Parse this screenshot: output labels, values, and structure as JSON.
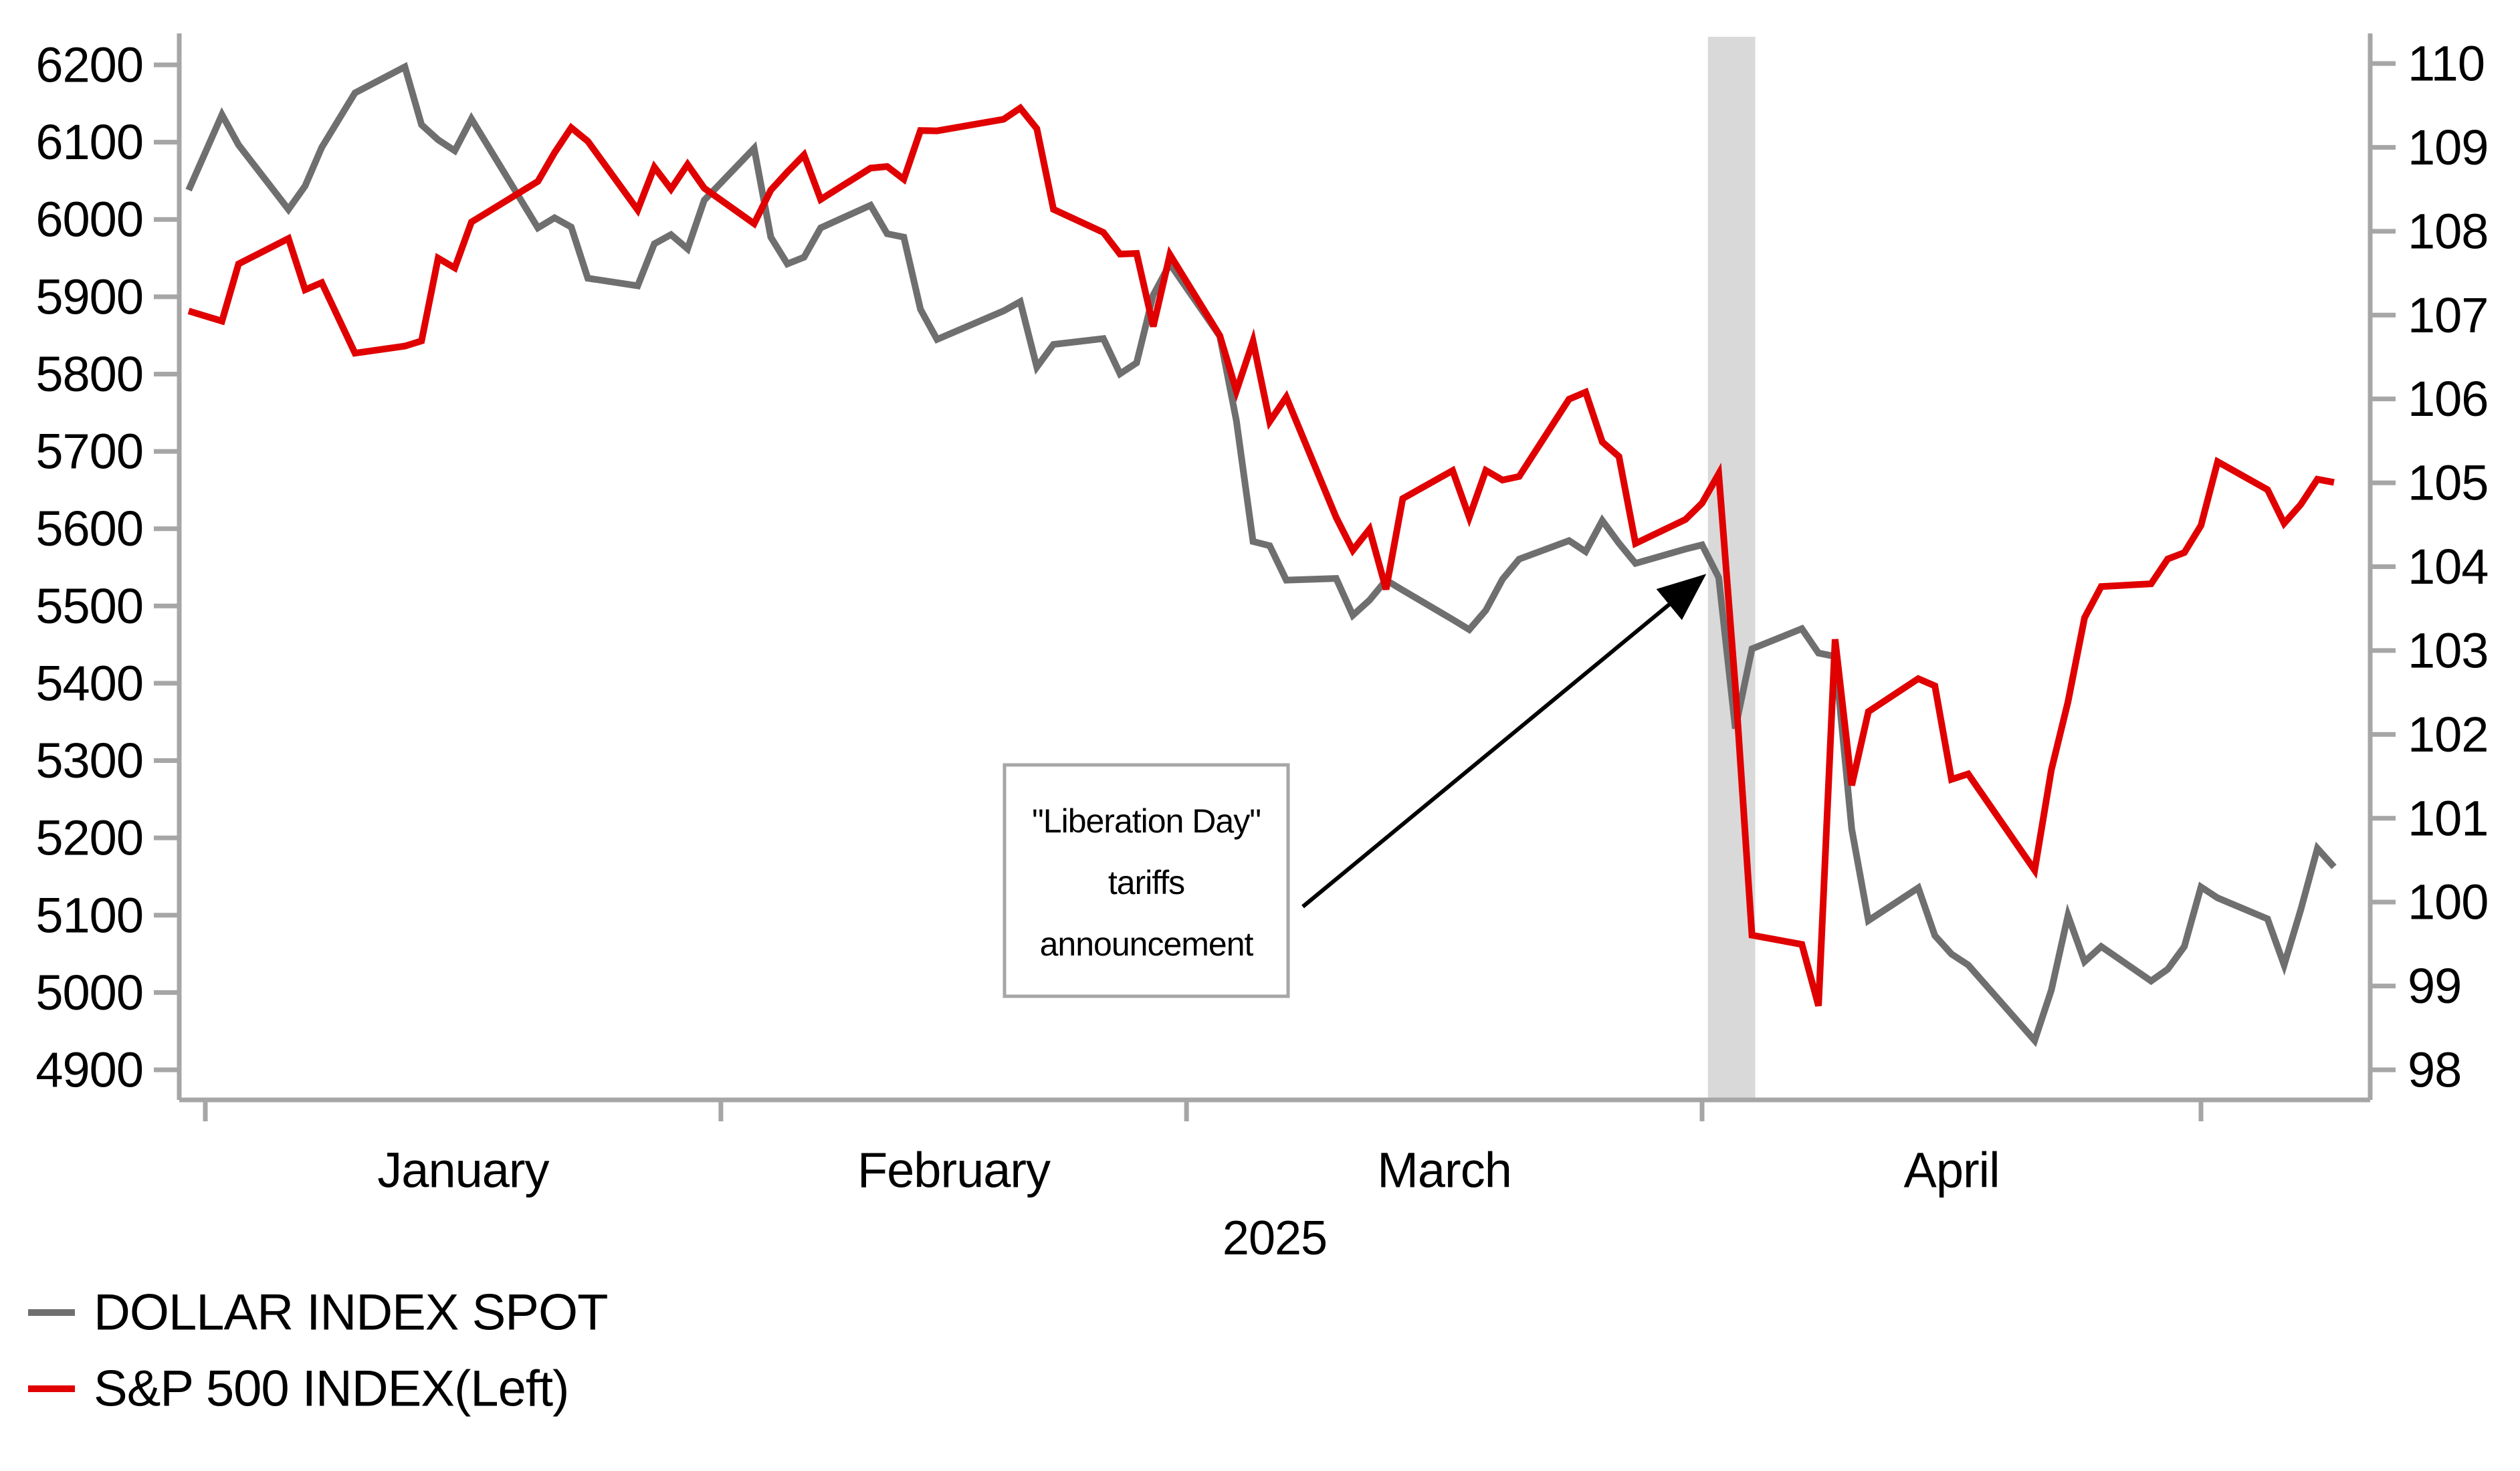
{
  "chart_data": {
    "type": "line",
    "title": "",
    "year": "2025",
    "x": [
      "2024-12-31",
      "2025-01-02",
      "2025-01-03",
      "2025-01-06",
      "2025-01-07",
      "2025-01-08",
      "2025-01-10",
      "2025-01-13",
      "2025-01-14",
      "2025-01-15",
      "2025-01-16",
      "2025-01-17",
      "2025-01-21",
      "2025-01-22",
      "2025-01-23",
      "2025-01-24",
      "2025-01-27",
      "2025-01-28",
      "2025-01-29",
      "2025-01-30",
      "2025-01-31",
      "2025-02-03",
      "2025-02-04",
      "2025-02-05",
      "2025-02-06",
      "2025-02-07",
      "2025-02-10",
      "2025-02-11",
      "2025-02-12",
      "2025-02-13",
      "2025-02-14",
      "2025-02-18",
      "2025-02-19",
      "2025-02-20",
      "2025-02-21",
      "2025-02-24",
      "2025-02-25",
      "2025-02-26",
      "2025-02-27",
      "2025-02-28",
      "2025-03-03",
      "2025-03-04",
      "2025-03-05",
      "2025-03-06",
      "2025-03-07",
      "2025-03-10",
      "2025-03-11",
      "2025-03-12",
      "2025-03-13",
      "2025-03-14",
      "2025-03-17",
      "2025-03-18",
      "2025-03-19",
      "2025-03-20",
      "2025-03-21",
      "2025-03-24",
      "2025-03-25",
      "2025-03-26",
      "2025-03-27",
      "2025-03-28",
      "2025-03-31",
      "2025-04-01",
      "2025-04-02",
      "2025-04-03",
      "2025-04-04",
      "2025-04-07",
      "2025-04-08",
      "2025-04-09",
      "2025-04-10",
      "2025-04-11",
      "2025-04-14",
      "2025-04-15",
      "2025-04-16",
      "2025-04-17",
      "2025-04-21",
      "2025-04-22",
      "2025-04-23",
      "2025-04-24",
      "2025-04-25",
      "2025-04-28",
      "2025-04-29",
      "2025-04-30",
      "2025-05-01",
      "2025-05-02",
      "2025-05-05",
      "2025-05-06",
      "2025-05-07",
      "2025-05-08",
      "2025-05-09"
    ],
    "series": [
      {
        "name": "DOLLAR INDEX SPOT",
        "axis": "right",
        "color": "#6f6f6f",
        "values": [
          108.49,
          109.39,
          109.03,
          108.26,
          108.54,
          109.0,
          109.65,
          109.96,
          109.27,
          109.09,
          108.96,
          109.34,
          108.04,
          108.16,
          108.05,
          107.44,
          107.35,
          107.85,
          107.96,
          107.79,
          108.37,
          108.99,
          107.93,
          107.61,
          107.69,
          108.04,
          108.31,
          107.97,
          107.93,
          107.07,
          106.71,
          107.05,
          107.16,
          106.38,
          106.65,
          106.72,
          106.3,
          106.43,
          107.24,
          107.61,
          106.75,
          105.74,
          104.3,
          104.25,
          103.84,
          103.86,
          103.42,
          103.6,
          103.84,
          103.72,
          103.37,
          103.25,
          103.48,
          103.85,
          104.09,
          104.31,
          104.18,
          104.55,
          104.28,
          104.04,
          104.21,
          104.26,
          103.87,
          102.07,
          103.02,
          103.26,
          102.97,
          102.93,
          100.87,
          99.78,
          100.17,
          99.6,
          99.38,
          99.25,
          98.35,
          98.95,
          99.84,
          99.29,
          99.47,
          99.06,
          99.2,
          99.47,
          100.18,
          100.05,
          99.8,
          99.25,
          99.91,
          100.64,
          100.42
        ]
      },
      {
        "name": "S&P 500 INDEX(Left)",
        "axis": "left",
        "color": "#e00000",
        "values": [
          5881.63,
          5868.55,
          5942.47,
          5975.38,
          5909.03,
          5918.25,
          5827.04,
          5836.22,
          5842.91,
          5949.91,
          5937.34,
          5996.66,
          6049.24,
          6086.37,
          6118.71,
          6101.24,
          6012.28,
          6067.7,
          6039.31,
          6071.17,
          6040.53,
          5994.57,
          6037.88,
          6061.48,
          6083.57,
          6025.99,
          6066.44,
          6068.5,
          6051.97,
          6115.07,
          6114.63,
          6129.58,
          6144.15,
          6117.52,
          6013.13,
          5983.25,
          5955.25,
          5956.06,
          5861.57,
          5954.5,
          5849.72,
          5778.15,
          5842.63,
          5738.52,
          5770.2,
          5614.56,
          5572.07,
          5599.3,
          5521.52,
          5638.94,
          5675.12,
          5614.66,
          5675.29,
          5662.89,
          5667.56,
          5767.57,
          5776.65,
          5712.2,
          5693.31,
          5580.94,
          5611.85,
          5633.07,
          5670.97,
          5396.52,
          5074.08,
          5062.25,
          4982.77,
          5456.9,
          5268.05,
          5363.36,
          5405.97,
          5396.63,
          5275.7,
          5282.7,
          5158.2,
          5287.76,
          5375.86,
          5484.77,
          5525.21,
          5528.75,
          5560.83,
          5569.06,
          5604.14,
          5686.67,
          5650.38,
          5606.91,
          5631.28,
          5663.94,
          5659.91
        ]
      }
    ],
    "left_axis": {
      "min": 4900,
      "max": 6200,
      "step": 100,
      "tick_labels": [
        "4900",
        "5000",
        "5100",
        "5200",
        "5300",
        "5400",
        "5500",
        "5600",
        "5700",
        "5800",
        "5900",
        "6000",
        "6100",
        "6200"
      ]
    },
    "right_axis": {
      "min": 98,
      "max": 110,
      "step": 1,
      "tick_labels": [
        "98",
        "99",
        "100",
        "101",
        "102",
        "103",
        "104",
        "105",
        "106",
        "107",
        "108",
        "109",
        "110"
      ]
    },
    "x_axis": {
      "month_boundaries": [
        "2025-01-01",
        "2025-02-01",
        "2025-03-01",
        "2025-04-01",
        "2025-05-01"
      ],
      "month_labels": [
        "January",
        "February",
        "March",
        "April"
      ],
      "year_label": "2025"
    },
    "band": {
      "from": "2025-04-01",
      "to": "2025-04-04",
      "color": "#d9d9d9"
    },
    "annotation": {
      "lines": [
        "\"Liberation Day\"",
        "tariffs",
        "announcement"
      ],
      "arrow_points_to_date": "2025-04-01"
    },
    "legend": {
      "items": [
        {
          "label": "DOLLAR INDEX SPOT",
          "color": "#6f6f6f"
        },
        {
          "label": "S&P 500 INDEX(Left)",
          "color": "#e00000"
        }
      ]
    },
    "layout_hints": {
      "grid": "off",
      "legend_position": "bottom-left",
      "axis_color": "#a6a6a6"
    }
  }
}
